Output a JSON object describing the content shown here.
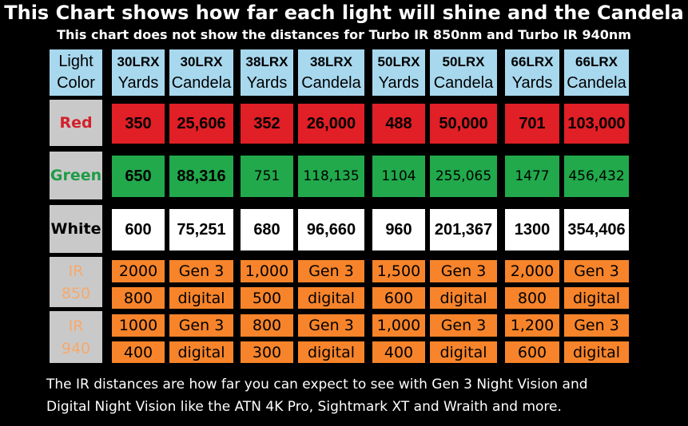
{
  "title": "This Chart shows how far each light will shine and the Candela",
  "subtitle": "This chart does not show the distances for Turbo IR 850nm and Turbo IR 940nm",
  "footer": {
    "line1": "The IR distances are how far you can expect to see with Gen 3 Night Vision and",
    "line2": "Digital Night Vision like the ATN 4K Pro, Sightmark XT and Wraith and more."
  },
  "colors": {
    "header_bg": "#a8d8ee",
    "label_bg": "#c9c9c9",
    "red_row": "#e01f26",
    "green_row": "#21a94b",
    "white_row": "#ffffff",
    "ir_row": "#f7842a",
    "red_text": "#d4202a",
    "green_text": "#1f9c46",
    "ir_text": "#f7a96b"
  },
  "chart_data": {
    "type": "table",
    "columns": [
      {
        "model": "Light",
        "measure": "Color"
      },
      {
        "model": "30LRX",
        "measure": "Yards"
      },
      {
        "model": "30LRX",
        "measure": "Candela"
      },
      {
        "model": "38LRX",
        "measure": "Yards"
      },
      {
        "model": "38LRX",
        "measure": "Candela"
      },
      {
        "model": "50LRX",
        "measure": "Yards"
      },
      {
        "model": "50LRX",
        "measure": "Candela"
      },
      {
        "model": "66LRX",
        "measure": "Yards"
      },
      {
        "model": "66LRX",
        "measure": "Candela"
      }
    ],
    "rows": [
      {
        "color": "Red",
        "values": [
          "350",
          "25,606",
          "352",
          "26,000",
          "488",
          "50,000",
          "701",
          "103,000"
        ]
      },
      {
        "color": "Green",
        "values": [
          "650",
          "88,316",
          "751",
          "118,135",
          "1104",
          "255,065",
          "1477",
          "456,432"
        ]
      },
      {
        "color": "White",
        "values": [
          "600",
          "75,251",
          "680",
          "96,660",
          "960",
          "201,367",
          "1300",
          "354,406"
        ]
      },
      {
        "color_line1": "IR",
        "color_line2": "850",
        "rows": [
          [
            "2000",
            "Gen 3",
            "1,000",
            "Gen 3",
            "1,500",
            "Gen 3",
            "2,000",
            "Gen 3"
          ],
          [
            "800",
            "digital",
            "500",
            "digital",
            "600",
            "digital",
            "800",
            "digital"
          ]
        ]
      },
      {
        "color_line1": "IR",
        "color_line2": "940",
        "rows": [
          [
            "1000",
            "Gen 3",
            "800",
            "Gen 3",
            "1,000",
            "Gen 3",
            "1,200",
            "Gen 3"
          ],
          [
            "400",
            "digital",
            "300",
            "digital",
            "400",
            "digital",
            "600",
            "digital"
          ]
        ]
      }
    ]
  }
}
